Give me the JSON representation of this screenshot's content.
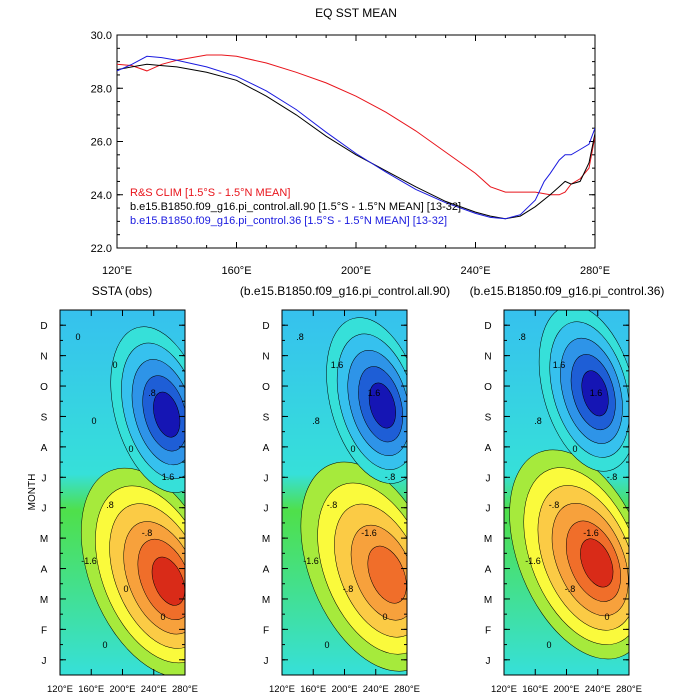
{
  "chart_data": [
    {
      "type": "line",
      "title": "EQ SST MEAN",
      "xlabel": "",
      "ylabel": "",
      "xlim": [
        120,
        280
      ],
      "ylim": [
        22.0,
        30.0
      ],
      "xticks": [
        120,
        160,
        200,
        240,
        280
      ],
      "xtick_labels": [
        "120°E",
        "160°E",
        "200°E",
        "240°E",
        "280°E"
      ],
      "yticks": [
        22,
        24,
        26,
        28,
        30
      ],
      "ytick_labels": [
        "22.0",
        "24.0",
        "26.0",
        "28.0",
        "30.0"
      ],
      "legend_position": "bottom-left",
      "series": [
        {
          "name": "R&S CLIM [1.5°S - 1.5°N MEAN]",
          "color": "#e8141b",
          "x": [
            120,
            125,
            130,
            135,
            140,
            145,
            150,
            155,
            160,
            170,
            180,
            190,
            200,
            210,
            220,
            230,
            240,
            245,
            250,
            255,
            260,
            265,
            268,
            270,
            272,
            275,
            278,
            280
          ],
          "y": [
            28.9,
            28.85,
            28.65,
            28.9,
            29.05,
            29.15,
            29.25,
            29.25,
            29.2,
            28.95,
            28.6,
            28.2,
            27.7,
            27.1,
            26.4,
            25.6,
            24.8,
            24.3,
            24.1,
            24.1,
            24.1,
            24.0,
            24.0,
            24.1,
            24.4,
            24.6,
            25.0,
            26.2
          ]
        },
        {
          "name": "b.e15.B1850.f09_g16.pi_control.all.90 [1.5°S - 1.5°N MEAN] [13-32]",
          "color": "#000000",
          "x": [
            120,
            125,
            130,
            135,
            140,
            150,
            160,
            170,
            180,
            190,
            200,
            210,
            220,
            230,
            240,
            245,
            250,
            255,
            260,
            265,
            268,
            270,
            272,
            275,
            278,
            280
          ],
          "y": [
            28.7,
            28.8,
            28.9,
            28.85,
            28.8,
            28.6,
            28.3,
            27.7,
            27.0,
            26.2,
            25.5,
            24.9,
            24.3,
            23.75,
            23.35,
            23.2,
            23.1,
            23.2,
            23.55,
            24.0,
            24.3,
            24.5,
            24.4,
            24.5,
            25.2,
            26.3
          ]
        },
        {
          "name": "b.e15.B1850.f09_g16.pi_control.36 [1.5°S - 1.5°N MEAN] [13-32]",
          "color": "#1a1adf",
          "x": [
            120,
            125,
            130,
            135,
            140,
            150,
            160,
            170,
            180,
            190,
            200,
            210,
            220,
            230,
            240,
            245,
            250,
            255,
            260,
            263,
            265,
            268,
            270,
            272,
            275,
            278,
            280
          ],
          "y": [
            28.65,
            28.9,
            29.2,
            29.15,
            29.05,
            28.8,
            28.45,
            27.9,
            27.2,
            26.35,
            25.55,
            24.85,
            24.2,
            23.7,
            23.3,
            23.15,
            23.1,
            23.25,
            23.8,
            24.5,
            24.8,
            25.3,
            25.5,
            25.5,
            25.7,
            25.9,
            26.5
          ]
        }
      ]
    },
    {
      "type": "heatmap",
      "title": "SSTA (obs)",
      "ylabel": "MONTH",
      "xlim": [
        120,
        280
      ],
      "xtick_labels": [
        "120°E",
        "160°E",
        "200°E",
        "240°E",
        "280°E"
      ],
      "ytick_labels": [
        "J",
        "F",
        "M",
        "A",
        "M",
        "J",
        "J",
        "A",
        "S",
        "O",
        "N",
        "D"
      ],
      "colorscale": [
        "#1515b4",
        "#1e5ed6",
        "#2e94e8",
        "#36c1ee",
        "#36e0d9",
        "#2fe2a6",
        "#4fe04a",
        "#a6ea3c",
        "#fafa3c",
        "#fbcb45",
        "#f7a13c",
        "#f06e2a",
        "#d92b18"
      ],
      "contour_labels": [
        "0",
        "0",
        ".8",
        "0",
        "0",
        "1.6",
        ".8",
        "-.8",
        "-1.6",
        "0",
        "0",
        "0"
      ],
      "warm_peak": {
        "longitude": 265,
        "month": 3.0,
        "value": 2.5
      },
      "cold_peak": {
        "longitude": 260,
        "month": 8.5,
        "value": -2.0
      }
    },
    {
      "type": "heatmap",
      "title": "(b.e15.B1850.f09_g16.pi_control.all.90)",
      "xlim": [
        120,
        280
      ],
      "xtick_labels": [
        "120°E",
        "160°E",
        "200°E",
        "240°E",
        "280°E"
      ],
      "ytick_labels": [
        "J",
        "F",
        "M",
        "A",
        "M",
        "J",
        "J",
        "A",
        "S",
        "O",
        "N",
        "D"
      ],
      "contour_labels": [
        ".8",
        "1.6",
        "1.6",
        ".8",
        "0",
        "-.8",
        "-.8",
        "-1.6",
        "-1.6",
        "-.8",
        "0",
        "0"
      ],
      "warm_peak": {
        "longitude": 262,
        "month": 3.2,
        "value": 2.0
      },
      "cold_peak": {
        "longitude": 252,
        "month": 8.8,
        "value": -1.9
      }
    },
    {
      "type": "heatmap",
      "title": "(b.e15.B1850.f09_g16.pi_control.36)",
      "xlim": [
        120,
        280
      ],
      "xtick_labels": [
        "120°E",
        "160°E",
        "200°E",
        "240°E",
        "280°E"
      ],
      "ytick_labels": [
        "J",
        "F",
        "M",
        "A",
        "M",
        "J",
        "J",
        "A",
        "S",
        "O",
        "N",
        "D"
      ],
      "contour_labels": [
        ".8",
        "1.6",
        "1.6",
        ".8",
        "0",
        "-.8",
        "-.8",
        "-1.6",
        "-1.6",
        "-.8",
        "0",
        "0"
      ],
      "warm_peak": {
        "longitude": 245,
        "month": 3.6,
        "value": 2.3
      },
      "cold_peak": {
        "longitude": 240,
        "month": 9.2,
        "value": -2.2
      }
    }
  ]
}
